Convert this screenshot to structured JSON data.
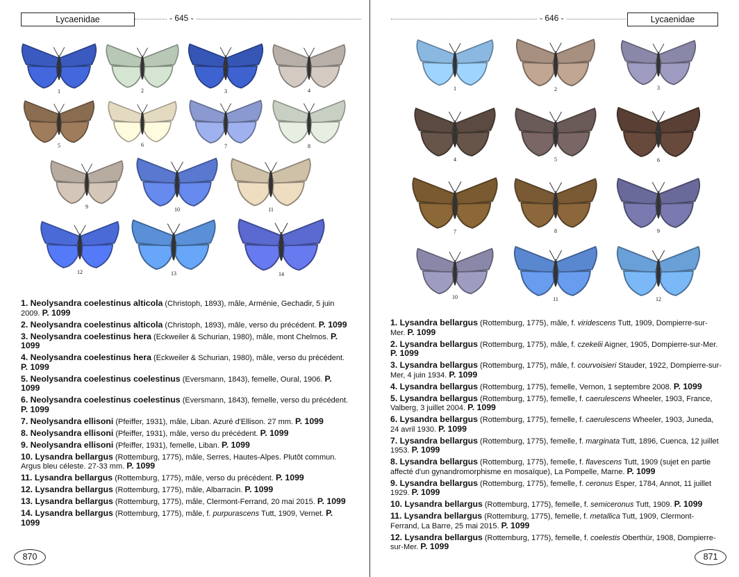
{
  "left_page": {
    "header_family": "Lycaenidae",
    "header_page": "- 645 -",
    "folio": "870",
    "figures": [
      {
        "n": "1",
        "color": "#3a5ac0"
      },
      {
        "n": "2",
        "color": "#b8c8b6"
      },
      {
        "n": "3",
        "color": "#3656b6"
      },
      {
        "n": "4",
        "color": "#b8b0a8"
      },
      {
        "n": "5",
        "color": "#8a6c50"
      },
      {
        "n": "6",
        "color": "#e4dac2"
      },
      {
        "n": "7",
        "color": "#8a9ad0"
      },
      {
        "n": "8",
        "color": "#c8d0c4"
      },
      {
        "n": "9",
        "color": "#b8aca0"
      },
      {
        "n": "10",
        "color": "#5a78d0"
      },
      {
        "n": "11",
        "color": "#cfc0a8"
      },
      {
        "n": "12",
        "color": "#4a6ad8"
      },
      {
        "n": "13",
        "color": "#5a90d8"
      },
      {
        "n": "14",
        "color": "#5a6ad0"
      }
    ],
    "captions": [
      {
        "name": "1. Neolysandra coelestinus alticola",
        "pre": " (Christoph, 1893), mâle, Arménie, Gechadir, 5 juin 2009. ",
        "it": "",
        "post": "",
        "ref": "P. 1099"
      },
      {
        "name": "2. Neolysandra coelestinus alticola",
        "pre": " (Christoph, 1893), mâle, verso du précédent. ",
        "it": "",
        "post": "",
        "ref": "P. 1099"
      },
      {
        "name": "3. Neolysandra coelestinus hera",
        "pre": " (Eckweiler & Schurian, 1980), mâle, mont Chelmos. ",
        "it": "",
        "post": "",
        "ref": "P. 1099"
      },
      {
        "name": "4. Neolysandra coelestinus hera",
        "pre": " (Eckweiler & Schurian, 1980), mâle, verso du précédent. ",
        "it": "",
        "post": "",
        "ref": "P. 1099"
      },
      {
        "name": "5. Neolysandra coelestinus coelestinus",
        "pre": " (Eversmann, 1843), femelle, Oural, 1906. ",
        "it": "",
        "post": "",
        "ref": "P. 1099"
      },
      {
        "name": "6. Neolysandra coelestinus coelestinus",
        "pre": " (Eversmann, 1843), femelle, verso du précédent. ",
        "it": "",
        "post": "",
        "ref": "P. 1099"
      },
      {
        "name": "7. Neolysandra ellisoni",
        "pre": " (Pfeiffer, 1931), mâle, Liban. Azuré d'Ellison. 27 mm. ",
        "it": "",
        "post": "",
        "ref": "P. 1099"
      },
      {
        "name": "8. Neolysandra ellisoni",
        "pre": " (Pfeiffer, 1931), mâle, verso du précédent. ",
        "it": "",
        "post": "",
        "ref": "P. 1099"
      },
      {
        "name": "9. Neolysandra ellisoni",
        "pre": " (Pfeiffer, 1931), femelle, Liban. ",
        "it": "",
        "post": "",
        "ref": "P. 1099"
      },
      {
        "name": "10. Lysandra bellargus",
        "pre": " (Rottemburg, 1775), mâle, Serres, Hautes-Alpes. Plutôt commun. Argus bleu céleste. 27-33 mm. ",
        "it": "",
        "post": "",
        "ref": "P. 1099"
      },
      {
        "name": "11. Lysandra bellargus",
        "pre": " (Rottemburg, 1775), mâle, verso du précédent. ",
        "it": "",
        "post": "",
        "ref": "P. 1099"
      },
      {
        "name": "12. Lysandra bellargus",
        "pre": " (Rottemburg, 1775), mâle, Albarracin. ",
        "it": "",
        "post": "",
        "ref": "P. 1099"
      },
      {
        "name": "13. Lysandra bellargus",
        "pre": " (Rottemburg, 1775), mâle, Clermont-Ferrand, 20 mai 2015. ",
        "it": "",
        "post": "",
        "ref": "P. 1099"
      },
      {
        "name": "14. Lysandra bellargus",
        "pre": " (Rottemburg, 1775), mâle, f. ",
        "it": "purpurascens",
        "post": " Tutt, 1909, Vernet. ",
        "ref": "P. 1099"
      }
    ]
  },
  "right_page": {
    "header_family": "Lycaenidae",
    "header_page": "- 646 -",
    "folio": "871",
    "figures": [
      {
        "n": "1",
        "color": "#8ab8e0"
      },
      {
        "n": "2",
        "color": "#a89080"
      },
      {
        "n": "3",
        "color": "#8a88a8"
      },
      {
        "n": "4",
        "color": "#5a4a40"
      },
      {
        "n": "5",
        "color": "#6a5a58"
      },
      {
        "n": "6",
        "color": "#5a4034"
      },
      {
        "n": "7",
        "color": "#7a5a30"
      },
      {
        "n": "8",
        "color": "#7a5a34"
      },
      {
        "n": "9",
        "color": "#6a6a9a"
      },
      {
        "n": "10",
        "color": "#8a88a8"
      },
      {
        "n": "11",
        "color": "#5a88d0"
      },
      {
        "n": "12",
        "color": "#6aa0d8"
      }
    ],
    "captions": [
      {
        "name": "1. Lysandra bellargus",
        "pre": " (Rottemburg, 1775), mâle, f. ",
        "it": "viridescens",
        "post": " Tutt, 1909, Dompierre-sur-Mer. ",
        "ref": "P. 1099"
      },
      {
        "name": "2. Lysandra bellargus",
        "pre": " (Rottemburg, 1775), mâle, f. ",
        "it": "czekelii",
        "post": " Aigner, 1905, Dompierre-sur-Mer. ",
        "ref": "P. 1099"
      },
      {
        "name": "3. Lysandra bellargus",
        "pre": " (Rottemburg, 1775), mâle, f. ",
        "it": "courvoisieri",
        "post": " Stauder, 1922, Dompierre-sur-Mer, 4 juin 1934. ",
        "ref": "P. 1099"
      },
      {
        "name": "4. Lysandra bellargus",
        "pre": " (Rottemburg, 1775), femelle, Vernon, 1 septembre 2008. ",
        "it": "",
        "post": "",
        "ref": "P. 1099"
      },
      {
        "name": "5. Lysandra bellargus",
        "pre": " (Rottemburg, 1775), femelle, f. ",
        "it": "caerulescens",
        "post": " Wheeler, 1903, France, Valberg, 3 juillet 2004. ",
        "ref": "P. 1099"
      },
      {
        "name": "6. Lysandra bellargus",
        "pre": " (Rottemburg, 1775), femelle, f. ",
        "it": "caerulescens",
        "post": " Wheeler, 1903, Juneda, 24 avril 1930. ",
        "ref": "P. 1099"
      },
      {
        "name": "7. Lysandra bellargus",
        "pre": " (Rottemburg, 1775), femelle, f. ",
        "it": "marginata",
        "post": " Tutt, 1896, Cuenca, 12 juillet 1953. ",
        "ref": "P. 1099"
      },
      {
        "name": "8. Lysandra bellargus",
        "pre": " (Rottemburg, 1775), femelle, f. ",
        "it": "flavescens",
        "post": " Tutt, 1909 (sujet en partie affecté d'un gynandromorphisme en mosaïque), La Pompelle, Marne. ",
        "ref": "P. 1099"
      },
      {
        "name": "9. Lysandra bellargus",
        "pre": " (Rottemburg, 1775), femelle, f. ",
        "it": "ceronus",
        "post": " Esper, 1784, Annot, 11 juillet 1929. ",
        "ref": "P. 1099"
      },
      {
        "name": "10. Lysandra bellargus",
        "pre": " (Rottemburg, 1775), femelle, f. ",
        "it": "semiceronus",
        "post": " Tutt, 1909. ",
        "ref": "P. 1099"
      },
      {
        "name": "11. Lysandra bellargus",
        "pre": " (Rottemburg, 1775), femelle, f. ",
        "it": "metallica",
        "post": " Tutt, 1909, Clermont-Ferrand, La Barre, 25 mai 2015. ",
        "ref": "P. 1099"
      },
      {
        "name": "12. Lysandra bellargus",
        "pre": " (Rottemburg, 1775), femelle, f. ",
        "it": "coelestis",
        "post": " Oberthür, 1908, Dompierre-sur-Mer. ",
        "ref": "P. 1099"
      }
    ]
  }
}
